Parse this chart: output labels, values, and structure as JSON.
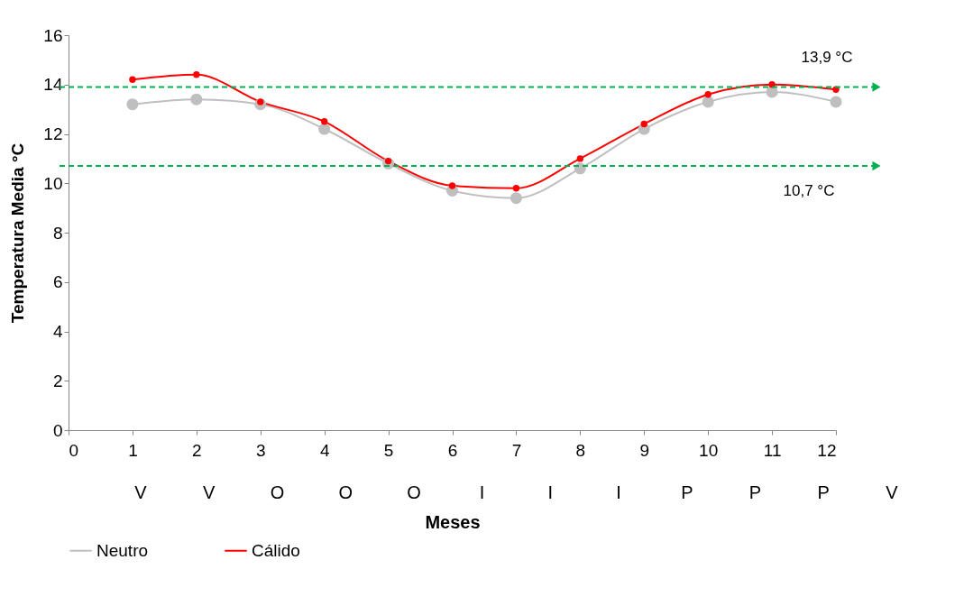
{
  "chart_data": {
    "type": "line",
    "xlabel": "Meses",
    "ylabel": "Temperatura Media °C",
    "x": [
      1,
      2,
      3,
      4,
      5,
      6,
      7,
      8,
      9,
      10,
      11,
      12
    ],
    "series": [
      {
        "name": "Neutro",
        "color": "#bfbfbf",
        "values": [
          13.2,
          13.4,
          13.2,
          12.2,
          10.8,
          9.7,
          9.4,
          10.6,
          12.2,
          13.3,
          13.7,
          13.3
        ]
      },
      {
        "name": "Cálido",
        "color": "#ff0000",
        "values": [
          14.2,
          14.4,
          13.3,
          12.5,
          10.9,
          9.9,
          9.8,
          11.0,
          12.4,
          13.6,
          14.0,
          13.8
        ]
      }
    ],
    "xlim": [
      0,
      12
    ],
    "xticks": [
      0,
      1,
      2,
      3,
      4,
      5,
      6,
      7,
      8,
      9,
      10,
      11,
      12
    ],
    "ylim": [
      0,
      16
    ],
    "yticks": [
      0,
      2,
      4,
      6,
      8,
      10,
      12,
      14,
      16
    ],
    "ref_lines": [
      {
        "axis": "y",
        "value": 13.9,
        "label": "13,9 °C",
        "color": "#00b050",
        "line_style": "dashed"
      },
      {
        "axis": "y",
        "value": 10.7,
        "label": "10,7 °C",
        "color": "#00b050",
        "line_style": "dashed"
      }
    ],
    "annotations": [
      "V",
      "V",
      "O",
      "O",
      "O",
      "I",
      "I",
      "I",
      "P",
      "P",
      "P",
      "V"
    ],
    "marker": "circle",
    "legend": "bottom",
    "grid": false
  }
}
